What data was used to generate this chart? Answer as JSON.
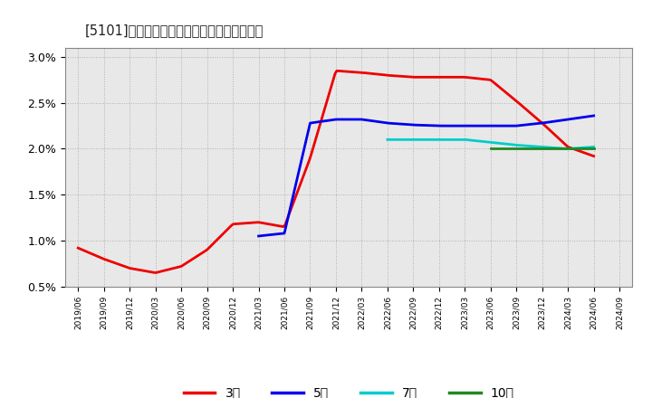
{
  "title": "[5101]　経常利益マージンの標準偏差の推移",
  "ylim": [
    0.005,
    0.031
  ],
  "yticks": [
    0.005,
    0.01,
    0.015,
    0.02,
    0.025,
    0.03
  ],
  "ytick_labels": [
    "0.5%",
    "1.0%",
    "1.5%",
    "2.0%",
    "2.5%",
    "3.0%"
  ],
  "background_color": "#ffffff",
  "plot_bg_color": "#e8e8e8",
  "series": {
    "3年": {
      "color": "#ee0000",
      "x": [
        0,
        1,
        2,
        3,
        4,
        5,
        6,
        7,
        8,
        9,
        10,
        11,
        12,
        13,
        14,
        15,
        16,
        17,
        18,
        19,
        20
      ],
      "values": [
        0.0092,
        0.008,
        0.007,
        0.0065,
        0.0072,
        0.009,
        0.0118,
        0.012,
        0.0115,
        0.019,
        0.0285,
        0.0283,
        0.028,
        0.0278,
        0.0278,
        0.0278,
        0.0275,
        0.0252,
        0.0228,
        0.0202,
        0.0192
      ]
    },
    "5年": {
      "color": "#0000ee",
      "x": [
        7,
        8,
        9,
        10,
        11,
        12,
        13,
        14,
        15,
        16,
        17,
        18,
        19,
        20
      ],
      "values": [
        0.0105,
        0.0108,
        0.0228,
        0.0232,
        0.0232,
        0.0228,
        0.0226,
        0.0225,
        0.0225,
        0.0225,
        0.0225,
        0.0228,
        0.0232,
        0.0236
      ]
    },
    "7年": {
      "color": "#00cccc",
      "x": [
        12,
        13,
        14,
        15,
        16,
        17,
        18,
        19,
        20
      ],
      "values": [
        0.021,
        0.021,
        0.021,
        0.021,
        0.0207,
        0.0204,
        0.0202,
        0.02,
        0.0202
      ]
    },
    "10年": {
      "color": "#228822",
      "x": [
        16,
        17,
        18,
        19,
        20
      ],
      "values": [
        0.02,
        0.02,
        0.02,
        0.02,
        0.02
      ]
    }
  },
  "legend_labels": [
    "3年",
    "5年",
    "7年",
    "10年"
  ],
  "legend_colors": [
    "#ee0000",
    "#0000ee",
    "#00cccc",
    "#228822"
  ],
  "x_tick_labels": [
    "2019/06",
    "2019/09",
    "2019/12",
    "2020/03",
    "2020/06",
    "2020/09",
    "2020/12",
    "2021/03",
    "2021/06",
    "2021/09",
    "2021/12",
    "2022/03",
    "2022/06",
    "2022/09",
    "2022/12",
    "2023/03",
    "2023/06",
    "2023/09",
    "2023/12",
    "2024/03",
    "2024/06",
    "2024/09"
  ]
}
